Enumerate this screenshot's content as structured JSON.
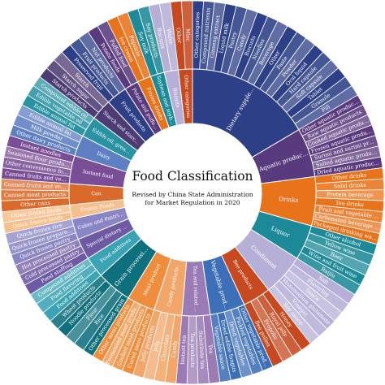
{
  "chart_data": {
    "type": "sunburst",
    "title": "Food Classification",
    "note_lines": [
      "Revised by China State Administration",
      "for Market Regulation in 2020"
    ],
    "palette": [
      "#2c3f87",
      "#5a3a7e",
      "#e8731b",
      "#1c8a98",
      "#b6b0d8",
      "#c6491f",
      "#3d6fb8",
      "#9a7bb5",
      "#f2a66a",
      "#f08d3c",
      "#0e6f7d",
      "#3aa4b4",
      "#6e59a4",
      "#8a86c6",
      "#f6c08e",
      "#d96a2b",
      "#7a4e96",
      "#5e7fc4",
      "#2a93a3",
      "#4d3b74"
    ],
    "inner": [
      "Dietary supplement (health food)",
      "Aquatic products",
      "Drinks",
      "Liquor",
      "Condiment",
      "Bee products",
      "Vegetable products",
      "Tea and related products",
      "Candy products",
      "Meat product",
      "Grain processing products",
      "Food additives",
      "Special dietary food",
      "Cakes and Pastries",
      "Frozen Foods",
      "Can",
      "Instant food",
      "Dairy",
      "Edible oil, grease and their products",
      "Starch and starch products",
      "Fruit products",
      "Potato and puffed foods",
      "Frozen drinks",
      "Soybean and soybean products",
      "Biscuits",
      "Other categories"
    ],
    "outer": [
      [
        "Other categories",
        "Compound nutrients",
        "Ginseng extract",
        "Liquid milk",
        "Pastry",
        "Candy",
        "Biscuits",
        "Noodles",
        "Beverage",
        "Other",
        "Paste",
        "Powder",
        "Oral liquid",
        "Hard capsule",
        "Soft capsule",
        "Tablet",
        "Granule",
        "Pill"
      ],
      [
        "Other aquatic products",
        "Raw aquatic products",
        "Cooked aquatic products",
        "Frozen aquatic products",
        "Surimi and surimi products",
        "Salted aquatic products",
        "Dried aquatic products"
      ],
      [
        "Other drinks",
        "Solid drinks",
        "Protein beverage",
        "Tea drinks",
        "Fruit and vegetable juice",
        "Carbonated beverage (soda)",
        "Packaged drinking water"
      ],
      [
        "Other alcohol",
        "Yellow wine",
        "Beer",
        "Wine and fruit wine",
        "Baijiu"
      ],
      [
        "Salt",
        "Flavoring",
        "Sauce",
        "Monosodium glutamate",
        "Vinegar",
        "Soy sauce"
      ],
      [
        "Honey",
        "Royal jelly",
        "Propolis",
        "Bee pollen"
      ],
      [
        "Other vegetable products",
        "Pickled vegetables",
        "Dried vegetables",
        "Dried edible fungus",
        "Vegetable sauce"
      ],
      [
        "Tea",
        "Substitute tea",
        "Tea products",
        "Instant tea"
      ],
      [
        "Candy",
        "Chocolate",
        "Jelly",
        "Jelly products"
      ],
      [
        "Cured meat products",
        "Cooked meat products",
        "Fermented meat products",
        "Other meat products"
      ],
      [
        "Other processed grain",
        "Rice",
        "Flour",
        "Noodle products",
        "Wheat products"
      ],
      [
        "Food additives",
        "Food flavoring",
        "Compound additives"
      ],
      [
        "Food stuffing",
        "Cold processed pastry",
        "Hot processed pastry"
      ],
      [
        "Quick frozen pastry",
        "Quick-frozen prepared food",
        "Quick-frozen rice"
      ],
      [
        "Quick frozen foods",
        "Other frozen foods"
      ],
      [
        "Other cans",
        "Canned meat products",
        "Canned fruits and vegetables"
      ],
      [
        "Canned fruits and vegetables",
        "Other convenience foods",
        "Seasoned flour products",
        "Instant noodles"
      ],
      [
        "Other dairy products",
        "Milk powder",
        "Edible animal fat"
      ],
      [
        "Edible animal fat",
        "Edible vegetable oil",
        "Compound edible oil"
      ],
      [
        "Starch products",
        "Starch sugar",
        "Starch"
      ],
      [
        "Preserved fruit",
        "Fruit products",
        "Nut products"
      ],
      [
        "Potato foods",
        "Puffed food"
      ],
      [
        "Ice cream",
        "Popsicle"
      ],
      [
        "Soy milk",
        "Soy products"
      ],
      [
        "Biscuits",
        "Wafer"
      ],
      [
        "Other",
        "Misc"
      ]
    ]
  }
}
